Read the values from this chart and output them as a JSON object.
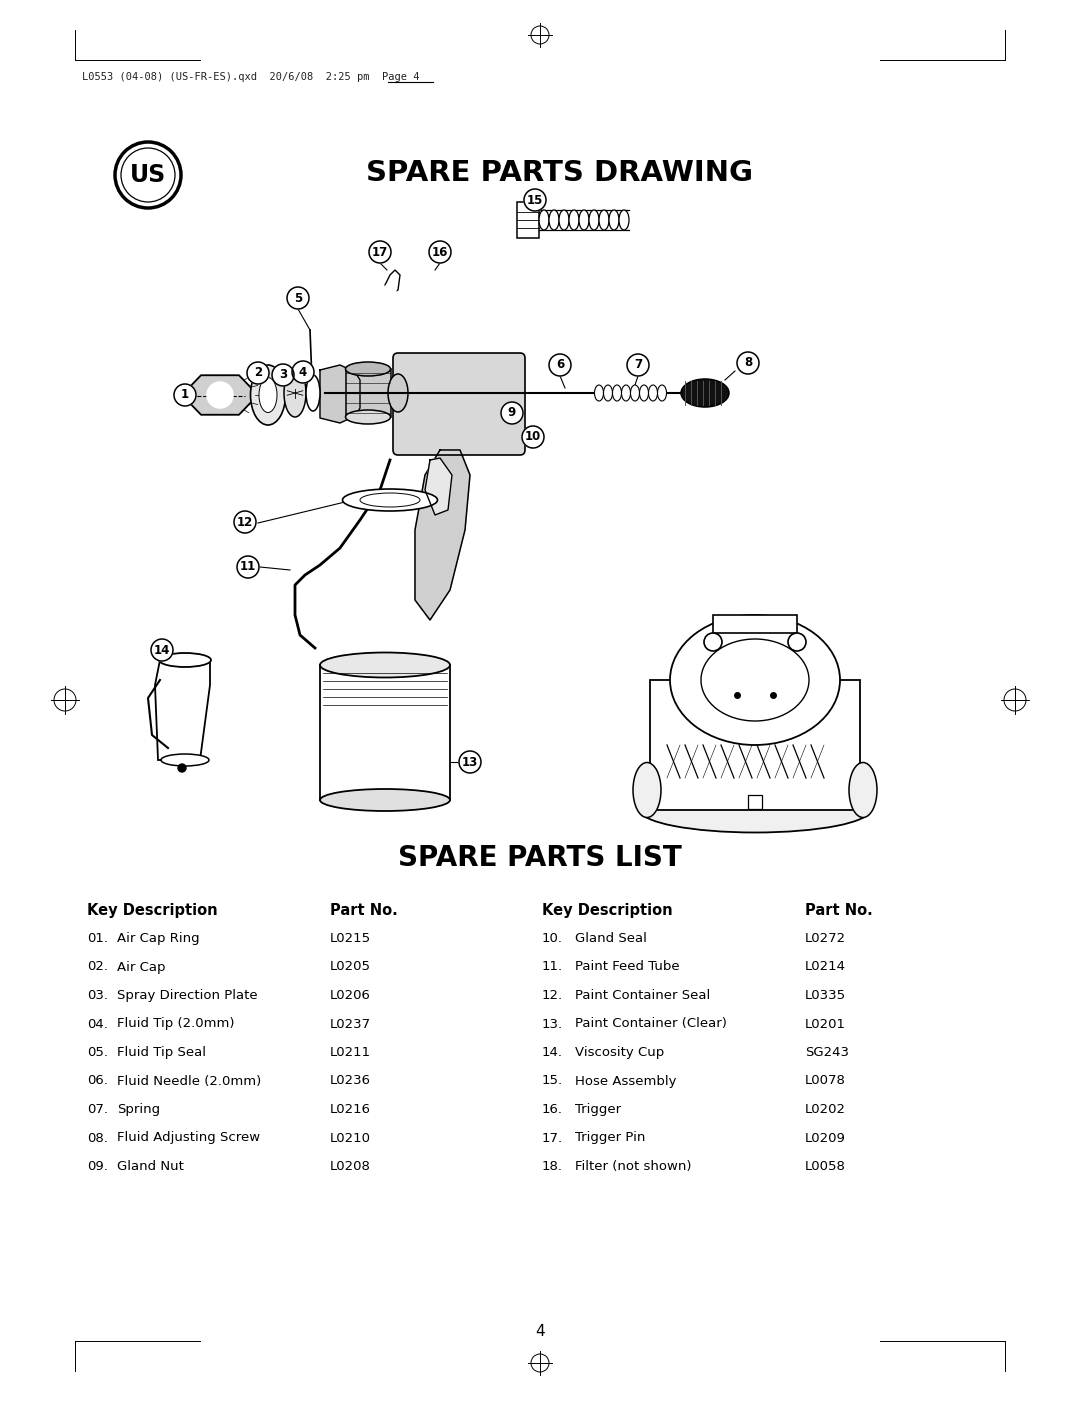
{
  "page_header": "L0553 (04-08) (US-FR-ES).qxd  20/6/08  2:25̲p̲m̲  Page 4",
  "header_plain": "L0553 (04-08) (US-FR-ES).qxd  20/6/08  2:25 pm  Page 4",
  "title_drawing": "SPARE PARTS DRAWING",
  "title_list": "SPARE PARTS LIST",
  "page_number": "4",
  "col1_header_key": "Key Description",
  "col1_header_part": "Part No.",
  "col2_header_key": "Key Description",
  "col2_header_part": "Part No.",
  "parts_left": [
    {
      "key": "01.",
      "desc": "Air Cap Ring",
      "part": "L0215"
    },
    {
      "key": "02.",
      "desc": "Air Cap",
      "part": "L0205"
    },
    {
      "key": "03.",
      "desc": "Spray Direction Plate",
      "part": "L0206"
    },
    {
      "key": "04.",
      "desc": "Fluid Tip (2.0mm)",
      "part": "L0237"
    },
    {
      "key": "05.",
      "desc": "Fluid Tip Seal",
      "part": "L0211"
    },
    {
      "key": "06.",
      "desc": "Fluid Needle (2.0mm)",
      "part": "L0236"
    },
    {
      "key": "07.",
      "desc": "Spring",
      "part": "L0216"
    },
    {
      "key": "08.",
      "desc": "Fluid Adjusting Screw",
      "part": "L0210"
    },
    {
      "key": "09.",
      "desc": "Gland Nut",
      "part": "L0208"
    }
  ],
  "parts_right": [
    {
      "key": "10.",
      "desc": "Gland Seal",
      "part": "L0272"
    },
    {
      "key": "11.",
      "desc": "Paint Feed Tube",
      "part": "L0214"
    },
    {
      "key": "12.",
      "desc": "Paint Container Seal",
      "part": "L0335"
    },
    {
      "key": "13.",
      "desc": "Paint Container (Clear)",
      "part": "L0201"
    },
    {
      "key": "14.",
      "desc": "Viscosity Cup",
      "part": "SG243"
    },
    {
      "key": "15.",
      "desc": "Hose Assembly",
      "part": "L0078"
    },
    {
      "key": "16.",
      "desc": "Trigger",
      "part": "L0202"
    },
    {
      "key": "17.",
      "desc": "Trigger Pin",
      "part": "L0209"
    },
    {
      "key": "18.",
      "desc": "Filter (not shown)",
      "part": "L0058"
    }
  ],
  "bg_color": "#ffffff"
}
